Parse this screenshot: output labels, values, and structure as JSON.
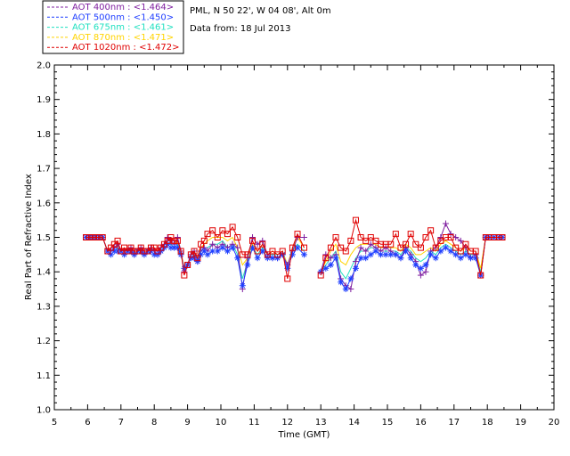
{
  "header": {
    "site_line": "PML, N 50 22', W 04 08', Alt 0m",
    "date_line": "Data from: 18 Jul 2013"
  },
  "chart_data": {
    "type": "line",
    "title": "",
    "xlabel": "Time (GMT)",
    "ylabel": "Real Part of Refractive Index",
    "xlim": [
      5,
      20
    ],
    "ylim": [
      1.0,
      2.0
    ],
    "xticks": [
      "5",
      "6",
      "7",
      "8",
      "9",
      "10",
      "11",
      "12",
      "13",
      "14",
      "15",
      "16",
      "17",
      "18",
      "19",
      "20"
    ],
    "yticks": [
      "1.0",
      "1.1",
      "1.2",
      "1.3",
      "1.4",
      "1.5",
      "1.6",
      "1.7",
      "1.8",
      "1.9",
      "2.0"
    ],
    "legend_position": "top-left outside",
    "series": [
      {
        "name": "AOT  400nm : <1.464>",
        "color": "#7f1fa0",
        "marker": "plus",
        "x": [
          5.95,
          6.05,
          6.15,
          6.25,
          6.35,
          6.45,
          6.6,
          6.7,
          6.8,
          6.9,
          7.0,
          7.1,
          7.2,
          7.3,
          7.4,
          7.5,
          7.6,
          7.7,
          7.8,
          7.9,
          8.0,
          8.1,
          8.2,
          8.3,
          8.4,
          8.5,
          8.6,
          8.7,
          8.8,
          8.9,
          9.0,
          9.1,
          9.2,
          9.3,
          9.4,
          9.5,
          9.6,
          9.75,
          9.9,
          10.05,
          10.2,
          10.35,
          10.5,
          10.65,
          10.8,
          10.95,
          11.1,
          11.25,
          11.4,
          11.55,
          11.7,
          11.85,
          12.0,
          12.15,
          12.3,
          12.5,
          13.0,
          13.15,
          13.3,
          13.45,
          13.6,
          13.75,
          13.9,
          14.05,
          14.2,
          14.35,
          14.5,
          14.65,
          14.8,
          14.95,
          15.1,
          15.25,
          15.4,
          15.55,
          15.7,
          15.85,
          16.0,
          16.15,
          16.3,
          16.45,
          16.6,
          16.75,
          16.9,
          17.05,
          17.2,
          17.35,
          17.5,
          17.65,
          17.8,
          17.95,
          18.05,
          18.2,
          18.35,
          18.45
        ],
        "values": [
          1.5,
          1.5,
          1.5,
          1.5,
          1.5,
          1.5,
          1.46,
          1.46,
          1.47,
          1.48,
          1.46,
          1.46,
          1.46,
          1.47,
          1.45,
          1.46,
          1.47,
          1.45,
          1.46,
          1.47,
          1.46,
          1.45,
          1.47,
          1.48,
          1.5,
          1.49,
          1.48,
          1.5,
          1.46,
          1.4,
          1.42,
          1.45,
          1.46,
          1.43,
          1.46,
          1.47,
          1.46,
          1.48,
          1.47,
          1.48,
          1.47,
          1.48,
          1.47,
          1.35,
          1.44,
          1.5,
          1.48,
          1.49,
          1.45,
          1.44,
          1.44,
          1.45,
          1.42,
          1.46,
          1.5,
          1.5,
          1.4,
          1.45,
          1.44,
          1.45,
          1.38,
          1.36,
          1.35,
          1.43,
          1.47,
          1.46,
          1.48,
          1.47,
          1.46,
          1.47,
          1.46,
          1.45,
          1.44,
          1.47,
          1.45,
          1.43,
          1.39,
          1.4,
          1.46,
          1.47,
          1.5,
          1.54,
          1.51,
          1.5,
          1.49,
          1.47,
          1.44,
          1.45,
          1.39,
          1.5,
          1.5,
          1.5,
          1.5,
          1.5
        ]
      },
      {
        "name": "AOT  500nm : <1.450>",
        "color": "#1f3fff",
        "marker": "asterisk",
        "x": [
          5.95,
          6.05,
          6.15,
          6.25,
          6.35,
          6.45,
          6.6,
          6.7,
          6.8,
          6.9,
          7.0,
          7.1,
          7.2,
          7.3,
          7.4,
          7.5,
          7.6,
          7.7,
          7.8,
          7.9,
          8.0,
          8.1,
          8.2,
          8.3,
          8.4,
          8.5,
          8.6,
          8.7,
          8.8,
          8.9,
          9.0,
          9.1,
          9.2,
          9.3,
          9.4,
          9.5,
          9.6,
          9.75,
          9.9,
          10.05,
          10.2,
          10.35,
          10.5,
          10.65,
          10.8,
          10.95,
          11.1,
          11.25,
          11.4,
          11.55,
          11.7,
          11.85,
          12.0,
          12.15,
          12.3,
          12.5,
          13.0,
          13.15,
          13.3,
          13.45,
          13.6,
          13.75,
          13.9,
          14.05,
          14.2,
          14.35,
          14.5,
          14.65,
          14.8,
          14.95,
          15.1,
          15.25,
          15.4,
          15.55,
          15.7,
          15.85,
          16.0,
          16.15,
          16.3,
          16.45,
          16.6,
          16.75,
          16.9,
          17.05,
          17.2,
          17.35,
          17.5,
          17.65,
          17.8,
          17.95,
          18.05,
          18.2,
          18.35,
          18.45
        ],
        "values": [
          1.5,
          1.5,
          1.5,
          1.5,
          1.5,
          1.5,
          1.46,
          1.45,
          1.46,
          1.46,
          1.46,
          1.45,
          1.46,
          1.46,
          1.45,
          1.46,
          1.46,
          1.45,
          1.46,
          1.46,
          1.45,
          1.45,
          1.46,
          1.47,
          1.48,
          1.47,
          1.47,
          1.47,
          1.45,
          1.41,
          1.42,
          1.44,
          1.44,
          1.43,
          1.45,
          1.46,
          1.45,
          1.46,
          1.46,
          1.47,
          1.46,
          1.47,
          1.44,
          1.36,
          1.42,
          1.47,
          1.44,
          1.46,
          1.44,
          1.44,
          1.44,
          1.45,
          1.41,
          1.45,
          1.47,
          1.45,
          1.4,
          1.41,
          1.42,
          1.44,
          1.37,
          1.35,
          1.38,
          1.41,
          1.44,
          1.44,
          1.45,
          1.46,
          1.45,
          1.45,
          1.45,
          1.45,
          1.44,
          1.46,
          1.44,
          1.42,
          1.41,
          1.42,
          1.45,
          1.44,
          1.46,
          1.47,
          1.46,
          1.45,
          1.44,
          1.45,
          1.44,
          1.44,
          1.39,
          1.5,
          1.5,
          1.5,
          1.5,
          1.5
        ]
      },
      {
        "name": "AOT  675nm : <1.461>",
        "color": "#1fe0c0",
        "marker": "none",
        "x": [
          5.95,
          6.05,
          6.15,
          6.25,
          6.35,
          6.45,
          6.6,
          6.7,
          6.8,
          6.9,
          7.0,
          7.1,
          7.2,
          7.3,
          7.4,
          7.5,
          7.6,
          7.7,
          7.8,
          7.9,
          8.0,
          8.1,
          8.2,
          8.3,
          8.4,
          8.5,
          8.6,
          8.7,
          8.8,
          8.9,
          9.0,
          9.1,
          9.2,
          9.3,
          9.4,
          9.5,
          9.6,
          9.75,
          9.9,
          10.05,
          10.2,
          10.35,
          10.5,
          10.65,
          10.8,
          10.95,
          11.1,
          11.25,
          11.4,
          11.55,
          11.7,
          11.85,
          12.0,
          12.15,
          12.3,
          12.5,
          13.0,
          13.15,
          13.3,
          13.45,
          13.6,
          13.75,
          13.9,
          14.05,
          14.2,
          14.35,
          14.5,
          14.65,
          14.8,
          14.95,
          15.1,
          15.25,
          15.4,
          15.55,
          15.7,
          15.85,
          16.0,
          16.15,
          16.3,
          16.45,
          16.6,
          16.75,
          16.9,
          17.05,
          17.2,
          17.35,
          17.5,
          17.65,
          17.8,
          17.95,
          18.05,
          18.2,
          18.35,
          18.45
        ],
        "values": [
          1.5,
          1.5,
          1.5,
          1.5,
          1.5,
          1.5,
          1.46,
          1.46,
          1.46,
          1.47,
          1.46,
          1.46,
          1.46,
          1.46,
          1.46,
          1.46,
          1.46,
          1.46,
          1.46,
          1.46,
          1.46,
          1.46,
          1.46,
          1.47,
          1.48,
          1.48,
          1.47,
          1.48,
          1.45,
          1.41,
          1.42,
          1.44,
          1.45,
          1.44,
          1.46,
          1.47,
          1.47,
          1.48,
          1.48,
          1.49,
          1.47,
          1.48,
          1.45,
          1.38,
          1.43,
          1.47,
          1.45,
          1.47,
          1.45,
          1.45,
          1.45,
          1.46,
          1.42,
          1.46,
          1.48,
          1.46,
          1.4,
          1.42,
          1.44,
          1.46,
          1.4,
          1.38,
          1.41,
          1.44,
          1.46,
          1.46,
          1.47,
          1.47,
          1.46,
          1.46,
          1.46,
          1.46,
          1.45,
          1.47,
          1.46,
          1.44,
          1.43,
          1.44,
          1.46,
          1.45,
          1.47,
          1.48,
          1.47,
          1.46,
          1.45,
          1.46,
          1.45,
          1.45,
          1.4,
          1.5,
          1.5,
          1.5,
          1.5,
          1.5
        ]
      },
      {
        "name": "AOT  870nm : <1.471>",
        "color": "#ffd400",
        "marker": "none",
        "x": [
          5.95,
          6.05,
          6.15,
          6.25,
          6.35,
          6.45,
          6.6,
          6.7,
          6.8,
          6.9,
          7.0,
          7.1,
          7.2,
          7.3,
          7.4,
          7.5,
          7.6,
          7.7,
          7.8,
          7.9,
          8.0,
          8.1,
          8.2,
          8.3,
          8.4,
          8.5,
          8.6,
          8.7,
          8.8,
          8.9,
          9.0,
          9.1,
          9.2,
          9.3,
          9.4,
          9.5,
          9.6,
          9.75,
          9.9,
          10.05,
          10.2,
          10.35,
          10.5,
          10.65,
          10.8,
          10.95,
          11.1,
          11.25,
          11.4,
          11.55,
          11.7,
          11.85,
          12.0,
          12.15,
          12.3,
          12.5,
          13.0,
          13.15,
          13.3,
          13.45,
          13.6,
          13.75,
          13.9,
          14.05,
          14.2,
          14.35,
          14.5,
          14.65,
          14.8,
          14.95,
          15.1,
          15.25,
          15.4,
          15.55,
          15.7,
          15.85,
          16.0,
          16.15,
          16.3,
          16.45,
          16.6,
          16.75,
          16.9,
          17.05,
          17.2,
          17.35,
          17.5,
          17.65,
          17.8,
          17.95,
          18.05,
          18.2,
          18.35,
          18.45
        ],
        "values": [
          1.5,
          1.5,
          1.5,
          1.5,
          1.5,
          1.5,
          1.46,
          1.46,
          1.47,
          1.48,
          1.46,
          1.46,
          1.46,
          1.47,
          1.46,
          1.46,
          1.47,
          1.46,
          1.46,
          1.47,
          1.46,
          1.46,
          1.47,
          1.48,
          1.49,
          1.49,
          1.48,
          1.49,
          1.46,
          1.41,
          1.42,
          1.45,
          1.46,
          1.44,
          1.47,
          1.48,
          1.49,
          1.5,
          1.5,
          1.5,
          1.49,
          1.5,
          1.47,
          1.42,
          1.44,
          1.48,
          1.46,
          1.48,
          1.45,
          1.46,
          1.45,
          1.46,
          1.42,
          1.47,
          1.5,
          1.47,
          1.4,
          1.43,
          1.46,
          1.48,
          1.43,
          1.42,
          1.45,
          1.47,
          1.48,
          1.48,
          1.48,
          1.48,
          1.47,
          1.47,
          1.47,
          1.47,
          1.46,
          1.48,
          1.47,
          1.45,
          1.45,
          1.46,
          1.47,
          1.46,
          1.48,
          1.49,
          1.48,
          1.47,
          1.46,
          1.47,
          1.46,
          1.46,
          1.41,
          1.5,
          1.5,
          1.5,
          1.5,
          1.5
        ]
      },
      {
        "name": "AOT 1020nm : <1.472>",
        "color": "#e00000",
        "marker": "square",
        "x": [
          5.95,
          6.05,
          6.15,
          6.25,
          6.35,
          6.45,
          6.6,
          6.7,
          6.8,
          6.9,
          7.0,
          7.1,
          7.2,
          7.3,
          7.4,
          7.5,
          7.6,
          7.7,
          7.8,
          7.9,
          8.0,
          8.1,
          8.2,
          8.3,
          8.4,
          8.5,
          8.6,
          8.7,
          8.8,
          8.9,
          9.0,
          9.1,
          9.2,
          9.3,
          9.4,
          9.5,
          9.6,
          9.75,
          9.9,
          10.05,
          10.2,
          10.35,
          10.5,
          10.65,
          10.8,
          10.95,
          11.1,
          11.25,
          11.4,
          11.55,
          11.7,
          11.85,
          12.0,
          12.15,
          12.3,
          12.5,
          13.0,
          13.15,
          13.3,
          13.45,
          13.6,
          13.75,
          13.9,
          14.05,
          14.2,
          14.35,
          14.5,
          14.65,
          14.8,
          14.95,
          15.1,
          15.25,
          15.4,
          15.55,
          15.7,
          15.85,
          16.0,
          16.15,
          16.3,
          16.45,
          16.6,
          16.75,
          16.9,
          17.05,
          17.2,
          17.35,
          17.5,
          17.65,
          17.8,
          17.95,
          18.05,
          18.2,
          18.35,
          18.45
        ],
        "values": [
          1.5,
          1.5,
          1.5,
          1.5,
          1.5,
          1.5,
          1.46,
          1.47,
          1.48,
          1.49,
          1.46,
          1.47,
          1.46,
          1.47,
          1.46,
          1.46,
          1.47,
          1.46,
          1.46,
          1.47,
          1.47,
          1.46,
          1.47,
          1.48,
          1.49,
          1.5,
          1.49,
          1.49,
          1.46,
          1.39,
          1.42,
          1.45,
          1.46,
          1.44,
          1.48,
          1.49,
          1.51,
          1.52,
          1.5,
          1.52,
          1.51,
          1.53,
          1.5,
          1.45,
          1.45,
          1.49,
          1.46,
          1.48,
          1.45,
          1.46,
          1.45,
          1.46,
          1.38,
          1.47,
          1.51,
          1.47,
          1.39,
          1.44,
          1.47,
          1.5,
          1.47,
          1.46,
          1.49,
          1.55,
          1.5,
          1.49,
          1.5,
          1.49,
          1.48,
          1.48,
          1.48,
          1.51,
          1.47,
          1.48,
          1.51,
          1.48,
          1.47,
          1.5,
          1.52,
          1.47,
          1.49,
          1.5,
          1.5,
          1.47,
          1.46,
          1.48,
          1.46,
          1.46,
          1.39,
          1.5,
          1.5,
          1.5,
          1.5,
          1.5
        ]
      }
    ]
  }
}
